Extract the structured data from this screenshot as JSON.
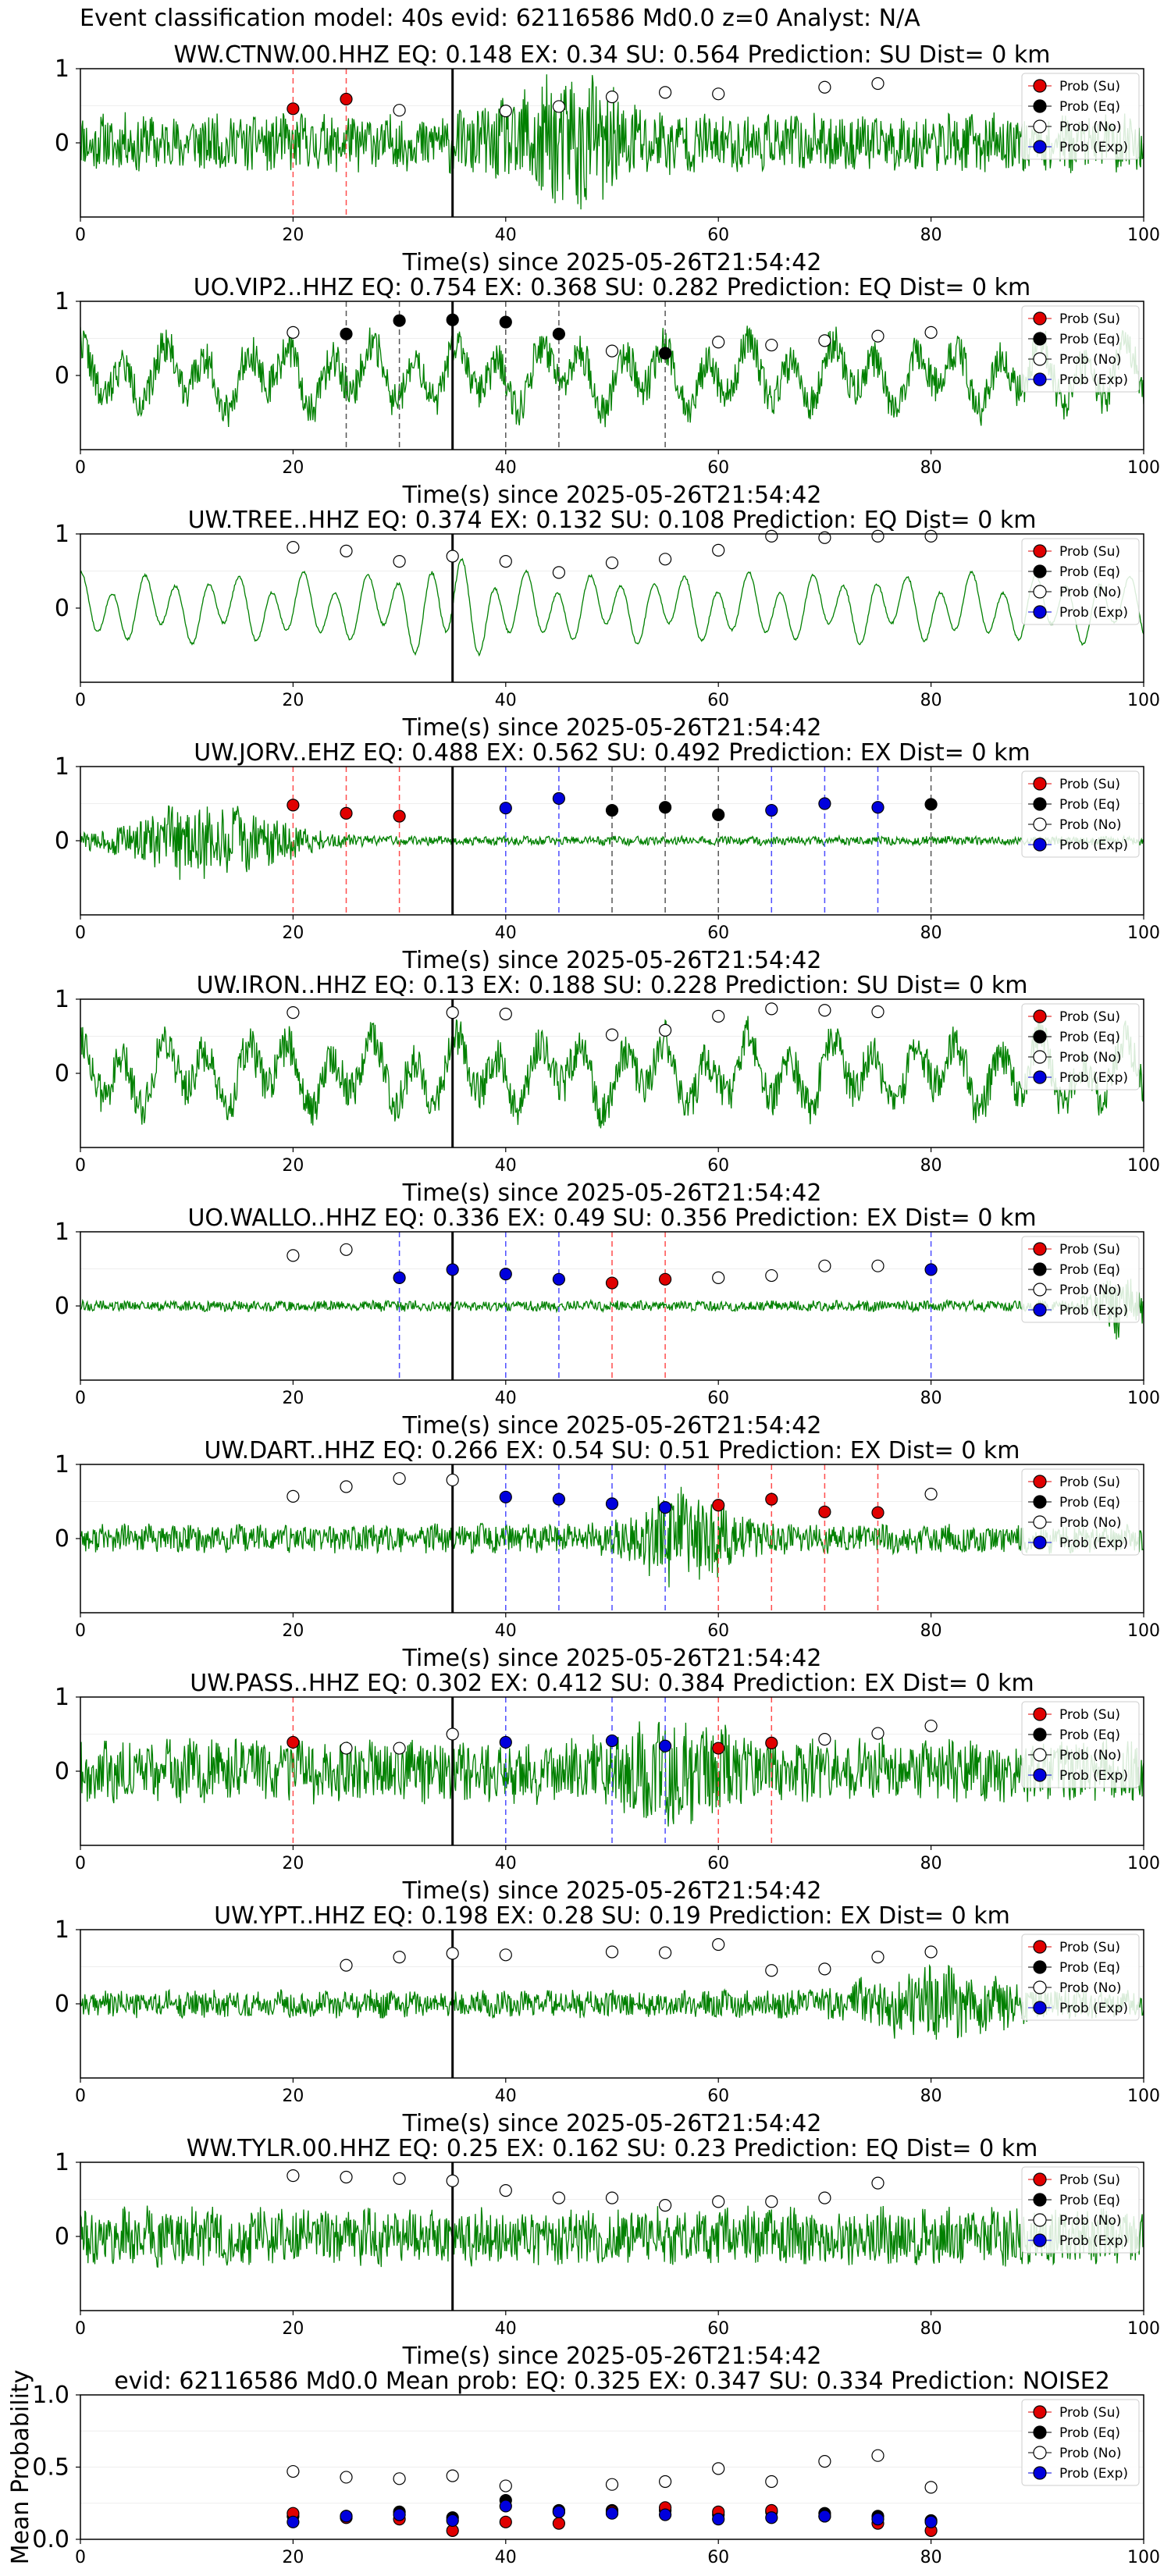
{
  "figure_title": "Event classification model: 40s evid: 62116586 Md0.0 z=0 Analyst: N/A",
  "legend_labels": [
    "Prob (Su)",
    "Prob (Eq)",
    "Prob (No)",
    "Prob (Exp)"
  ],
  "colors": {
    "su": "#e00000",
    "eq": "#000000",
    "no": "#ffffff",
    "exp": "#0000dd",
    "trace": "#008000",
    "pick_su": "#ff4d4d",
    "pick_eq": "#555555",
    "pick_exp": "#4d4dff",
    "origin_line": "#000000"
  },
  "chart_data": [
    {
      "type": "line",
      "title": "WW.CTNW.00.HHZ   EQ: 0.148  EX: 0.34  SU: 0.564   Prediction: SU    Dist= 0 km",
      "xlabel": "Time(s) since 2025-05-26T21:54:42",
      "ylabel": "",
      "xlim": [
        0,
        100
      ],
      "ylim": [
        -1,
        1
      ],
      "xticks": [
        0,
        20,
        40,
        60,
        80,
        100
      ],
      "yticks": [
        0,
        1
      ],
      "origin_time": 35,
      "noise_amp": 0.32,
      "trace_kind": "noisy",
      "trace_seed": 11,
      "burst": {
        "center": 46,
        "width": 6,
        "gain": 2.5
      },
      "prob_no": [
        [
          30,
          0.44
        ],
        [
          40,
          0.43
        ],
        [
          45,
          0.49
        ],
        [
          50,
          0.62
        ],
        [
          55,
          0.68
        ],
        [
          60,
          0.66
        ],
        [
          70,
          0.75
        ],
        [
          75,
          0.8
        ]
      ],
      "prob_eq": [],
      "prob_su": [
        [
          20,
          0.46
        ],
        [
          25,
          0.59
        ]
      ],
      "prob_exp": [],
      "picks_su": [
        20,
        25
      ],
      "picks_eq": [],
      "picks_exp": []
    },
    {
      "type": "line",
      "title": "UO.VIP2..HHZ   EQ: 0.754  EX: 0.368  SU: 0.282   Prediction: EQ    Dist= 0 km",
      "xlabel": "Time(s) since 2025-05-26T21:54:42",
      "ylabel": "",
      "xlim": [
        0,
        100
      ],
      "ylim": [
        -1,
        1
      ],
      "xticks": [
        0,
        20,
        40,
        60,
        80,
        100
      ],
      "yticks": [
        0,
        1
      ],
      "origin_time": 35,
      "noise_amp": 0.55,
      "trace_kind": "wavy",
      "trace_seed": 22,
      "burst": null,
      "prob_no": [
        [
          20,
          0.58
        ],
        [
          50,
          0.33
        ],
        [
          60,
          0.45
        ],
        [
          65,
          0.41
        ],
        [
          70,
          0.47
        ],
        [
          75,
          0.53
        ],
        [
          80,
          0.58
        ]
      ],
      "prob_eq": [
        [
          25,
          0.56
        ],
        [
          30,
          0.74
        ],
        [
          35,
          0.75
        ],
        [
          40,
          0.72
        ],
        [
          45,
          0.56
        ],
        [
          55,
          0.3
        ]
      ],
      "prob_su": [],
      "prob_exp": [],
      "picks_su": [],
      "picks_eq": [
        25,
        30,
        40,
        45,
        55
      ],
      "picks_exp": []
    },
    {
      "type": "line",
      "title": "UW.TREE..HHZ   EQ: 0.374  EX: 0.132  SU: 0.108   Prediction: EQ    Dist= 0 km",
      "xlabel": "Time(s) since 2025-05-26T21:54:42",
      "ylabel": "",
      "xlim": [
        0,
        100
      ],
      "ylim": [
        -1,
        1
      ],
      "xticks": [
        0,
        20,
        40,
        60,
        80,
        100
      ],
      "yticks": [
        0,
        1
      ],
      "origin_time": 35,
      "noise_amp": 0.42,
      "trace_kind": "smooth",
      "trace_seed": 33,
      "burst": {
        "center": 35,
        "width": 4,
        "gain": 1.6
      },
      "prob_no": [
        [
          20,
          0.82
        ],
        [
          25,
          0.77
        ],
        [
          30,
          0.63
        ],
        [
          35,
          0.7
        ],
        [
          40,
          0.63
        ],
        [
          45,
          0.48
        ],
        [
          50,
          0.61
        ],
        [
          55,
          0.66
        ],
        [
          60,
          0.78
        ],
        [
          65,
          0.97
        ],
        [
          70,
          0.95
        ],
        [
          75,
          0.97
        ],
        [
          80,
          0.97
        ]
      ],
      "prob_eq": [],
      "prob_su": [],
      "prob_exp": [],
      "picks_su": [],
      "picks_eq": [],
      "picks_exp": []
    },
    {
      "type": "line",
      "title": "UW.JORV..EHZ   EQ: 0.488  EX: 0.562  SU: 0.492   Prediction: EX    Dist= 0 km",
      "xlabel": "Time(s) since 2025-05-26T21:54:42",
      "ylabel": "",
      "xlim": [
        0,
        100
      ],
      "ylim": [
        -1,
        1
      ],
      "xticks": [
        0,
        20,
        40,
        60,
        80,
        100
      ],
      "yticks": [
        0,
        1
      ],
      "origin_time": 35,
      "noise_amp": 0.05,
      "trace_kind": "noisy",
      "trace_seed": 44,
      "burst": {
        "center": 12,
        "width": 8,
        "gain": 9
      },
      "prob_no": [],
      "prob_eq": [
        [
          50,
          0.41
        ],
        [
          55,
          0.45
        ],
        [
          60,
          0.35
        ],
        [
          80,
          0.49
        ]
      ],
      "prob_su": [
        [
          20,
          0.48
        ],
        [
          25,
          0.37
        ],
        [
          30,
          0.33
        ]
      ],
      "prob_exp": [
        [
          40,
          0.44
        ],
        [
          45,
          0.57
        ],
        [
          65,
          0.41
        ],
        [
          70,
          0.5
        ],
        [
          75,
          0.45
        ]
      ],
      "picks_su": [
        20,
        25,
        30
      ],
      "picks_eq": [
        50,
        55,
        60,
        80
      ],
      "picks_exp": [
        40,
        45,
        65,
        70,
        75
      ]
    },
    {
      "type": "line",
      "title": "UW.IRON..HHZ   EQ: 0.13  EX: 0.188  SU: 0.228   Prediction: SU    Dist= 0 km",
      "xlabel": "Time(s) since 2025-05-26T21:54:42",
      "ylabel": "",
      "xlim": [
        0,
        100
      ],
      "ylim": [
        -1,
        1
      ],
      "xticks": [
        0,
        20,
        40,
        60,
        80,
        100
      ],
      "yticks": [
        0,
        1
      ],
      "origin_time": 35,
      "noise_amp": 0.6,
      "trace_kind": "wavy",
      "trace_seed": 55,
      "burst": null,
      "prob_no": [
        [
          20,
          0.82
        ],
        [
          35,
          0.82
        ],
        [
          40,
          0.8
        ],
        [
          50,
          0.52
        ],
        [
          55,
          0.58
        ],
        [
          60,
          0.77
        ],
        [
          65,
          0.87
        ],
        [
          70,
          0.85
        ],
        [
          75,
          0.83
        ]
      ],
      "prob_eq": [],
      "prob_su": [],
      "prob_exp": [],
      "picks_su": [],
      "picks_eq": [],
      "picks_exp": []
    },
    {
      "type": "line",
      "title": "UO.WALLO..HHZ   EQ: 0.336  EX: 0.49  SU: 0.356   Prediction: EX    Dist= 0 km",
      "xlabel": "Time(s) since 2025-05-26T21:54:42",
      "ylabel": "",
      "xlim": [
        0,
        100
      ],
      "ylim": [
        -1,
        1
      ],
      "xticks": [
        0,
        20,
        40,
        60,
        80,
        100
      ],
      "yticks": [
        0,
        1
      ],
      "origin_time": 35,
      "noise_amp": 0.06,
      "trace_kind": "noisy",
      "trace_seed": 66,
      "burst": {
        "center": 98,
        "width": 3,
        "gain": 6
      },
      "prob_no": [
        [
          20,
          0.68
        ],
        [
          25,
          0.76
        ],
        [
          60,
          0.38
        ],
        [
          65,
          0.41
        ],
        [
          70,
          0.54
        ],
        [
          75,
          0.54
        ]
      ],
      "prob_eq": [],
      "prob_su": [
        [
          50,
          0.31
        ],
        [
          55,
          0.36
        ]
      ],
      "prob_exp": [
        [
          30,
          0.38
        ],
        [
          35,
          0.49
        ],
        [
          40,
          0.43
        ],
        [
          45,
          0.36
        ],
        [
          80,
          0.49
        ]
      ],
      "picks_su": [
        50,
        55
      ],
      "picks_eq": [],
      "picks_exp": [
        30,
        40,
        45,
        80
      ]
    },
    {
      "type": "line",
      "title": "UW.DART..HHZ   EQ: 0.266  EX: 0.54  SU: 0.51   Prediction: EX    Dist= 0 km",
      "xlabel": "Time(s) since 2025-05-26T21:54:42",
      "ylabel": "",
      "xlim": [
        0,
        100
      ],
      "ylim": [
        -1,
        1
      ],
      "xticks": [
        0,
        20,
        40,
        60,
        80,
        100
      ],
      "yticks": [
        0,
        1
      ],
      "origin_time": 35,
      "noise_amp": 0.16,
      "trace_kind": "noisy",
      "trace_seed": 77,
      "burst": {
        "center": 57,
        "width": 5,
        "gain": 3.5
      },
      "prob_no": [
        [
          20,
          0.57
        ],
        [
          25,
          0.7
        ],
        [
          30,
          0.81
        ],
        [
          35,
          0.79
        ],
        [
          80,
          0.6
        ]
      ],
      "prob_eq": [],
      "prob_su": [
        [
          60,
          0.45
        ],
        [
          65,
          0.53
        ],
        [
          70,
          0.36
        ],
        [
          75,
          0.35
        ]
      ],
      "prob_exp": [
        [
          40,
          0.56
        ],
        [
          45,
          0.53
        ],
        [
          50,
          0.47
        ],
        [
          55,
          0.42
        ]
      ],
      "picks_su": [
        60,
        65,
        70,
        75
      ],
      "picks_eq": [],
      "picks_exp": [
        40,
        45,
        50,
        55
      ]
    },
    {
      "type": "line",
      "title": "UW.PASS..HHZ   EQ: 0.302  EX: 0.412  SU: 0.384   Prediction: EX    Dist= 0 km",
      "xlabel": "Time(s) since 2025-05-26T21:54:42",
      "ylabel": "",
      "xlim": [
        0,
        100
      ],
      "ylim": [
        -1,
        1
      ],
      "xticks": [
        0,
        20,
        40,
        60,
        80,
        100
      ],
      "yticks": [
        0,
        1
      ],
      "origin_time": 35,
      "noise_amp": 0.35,
      "trace_kind": "noisy",
      "trace_seed": 88,
      "burst": {
        "center": 56,
        "width": 6,
        "gain": 1.8
      },
      "prob_no": [
        [
          25,
          0.31
        ],
        [
          30,
          0.31
        ],
        [
          35,
          0.5
        ],
        [
          70,
          0.43
        ],
        [
          75,
          0.51
        ],
        [
          80,
          0.61
        ]
      ],
      "prob_eq": [],
      "prob_su": [
        [
          20,
          0.39
        ],
        [
          60,
          0.31
        ],
        [
          65,
          0.38
        ]
      ],
      "prob_exp": [
        [
          40,
          0.39
        ],
        [
          50,
          0.41
        ],
        [
          55,
          0.34
        ]
      ],
      "picks_su": [
        20,
        60,
        65
      ],
      "picks_eq": [],
      "picks_exp": [
        40,
        50,
        55
      ]
    },
    {
      "type": "line",
      "title": "UW.YPT..HHZ   EQ: 0.198  EX: 0.28  SU: 0.19   Prediction: EX    Dist= 0 km",
      "xlabel": "Time(s) since 2025-05-26T21:54:42",
      "ylabel": "",
      "xlim": [
        0,
        100
      ],
      "ylim": [
        -1,
        1
      ],
      "xticks": [
        0,
        20,
        40,
        60,
        80,
        100
      ],
      "yticks": [
        0,
        1
      ],
      "origin_time": 35,
      "noise_amp": 0.15,
      "trace_kind": "noisy",
      "trace_seed": 99,
      "burst": {
        "center": 80,
        "width": 8,
        "gain": 2.8
      },
      "prob_no": [
        [
          25,
          0.52
        ],
        [
          30,
          0.63
        ],
        [
          35,
          0.68
        ],
        [
          40,
          0.66
        ],
        [
          50,
          0.7
        ],
        [
          55,
          0.69
        ],
        [
          60,
          0.8
        ],
        [
          65,
          0.45
        ],
        [
          70,
          0.47
        ],
        [
          75,
          0.63
        ],
        [
          80,
          0.7
        ]
      ],
      "prob_eq": [],
      "prob_su": [],
      "prob_exp": [],
      "picks_su": [],
      "picks_eq": [],
      "picks_exp": []
    },
    {
      "type": "line",
      "title": "WW.TYLR.00.HHZ   EQ: 0.25  EX: 0.162  SU: 0.23   Prediction: EQ    Dist= 0 km",
      "xlabel": "Time(s) since 2025-05-26T21:54:42",
      "ylabel": "",
      "xlim": [
        0,
        100
      ],
      "ylim": [
        -1,
        1
      ],
      "xticks": [
        0,
        20,
        40,
        60,
        80,
        100
      ],
      "yticks": [
        0,
        1
      ],
      "origin_time": 35,
      "noise_amp": 0.32,
      "trace_kind": "noisy",
      "trace_seed": 111,
      "burst": null,
      "prob_no": [
        [
          20,
          0.82
        ],
        [
          25,
          0.8
        ],
        [
          30,
          0.78
        ],
        [
          35,
          0.75
        ],
        [
          40,
          0.62
        ],
        [
          45,
          0.52
        ],
        [
          50,
          0.52
        ],
        [
          55,
          0.42
        ],
        [
          60,
          0.47
        ],
        [
          65,
          0.47
        ],
        [
          70,
          0.52
        ],
        [
          75,
          0.72
        ]
      ],
      "prob_eq": [],
      "prob_su": [],
      "prob_exp": [],
      "picks_su": [],
      "picks_eq": [],
      "picks_exp": []
    },
    {
      "type": "scatter",
      "title": "evid: 62116586  Md0.0   Mean prob:   EQ: 0.325  EX: 0.347  SU: 0.334   Prediction: NOISE2",
      "xlabel": "",
      "ylabel": "Mean Probability",
      "xlim": [
        0,
        100
      ],
      "ylim": [
        0,
        1
      ],
      "xticks": [
        0,
        20,
        40,
        60,
        80,
        100
      ],
      "yticks": [
        0,
        0.5,
        1
      ],
      "ytick_labels": [
        "0.0",
        "0.5",
        "1.0"
      ],
      "prob_no": [
        [
          20,
          0.47
        ],
        [
          25,
          0.43
        ],
        [
          30,
          0.42
        ],
        [
          35,
          0.44
        ],
        [
          40,
          0.37
        ],
        [
          45,
          0.19
        ],
        [
          50,
          0.38
        ],
        [
          55,
          0.4
        ],
        [
          60,
          0.49
        ],
        [
          65,
          0.4
        ],
        [
          70,
          0.54
        ],
        [
          75,
          0.58
        ],
        [
          80,
          0.36
        ]
      ],
      "prob_eq": [
        [
          20,
          0.16
        ],
        [
          25,
          0.16
        ],
        [
          30,
          0.19
        ],
        [
          35,
          0.15
        ],
        [
          40,
          0.27
        ],
        [
          45,
          0.2
        ],
        [
          50,
          0.2
        ],
        [
          55,
          0.2
        ],
        [
          60,
          0.17
        ],
        [
          65,
          0.19
        ],
        [
          70,
          0.18
        ],
        [
          75,
          0.16
        ],
        [
          80,
          0.13
        ]
      ],
      "prob_su": [
        [
          20,
          0.18
        ],
        [
          25,
          0.15
        ],
        [
          30,
          0.14
        ],
        [
          35,
          0.06
        ],
        [
          40,
          0.12
        ],
        [
          45,
          0.11
        ],
        [
          50,
          0.19
        ],
        [
          55,
          0.22
        ],
        [
          60,
          0.19
        ],
        [
          65,
          0.2
        ],
        [
          70,
          0.16
        ],
        [
          75,
          0.11
        ],
        [
          80,
          0.06
        ]
      ],
      "prob_exp": [
        [
          20,
          0.12
        ],
        [
          25,
          0.16
        ],
        [
          30,
          0.17
        ],
        [
          35,
          0.13
        ],
        [
          40,
          0.23
        ],
        [
          45,
          0.19
        ],
        [
          50,
          0.18
        ],
        [
          55,
          0.17
        ],
        [
          60,
          0.14
        ],
        [
          65,
          0.15
        ],
        [
          70,
          0.16
        ],
        [
          75,
          0.14
        ],
        [
          80,
          0.12
        ]
      ]
    }
  ]
}
